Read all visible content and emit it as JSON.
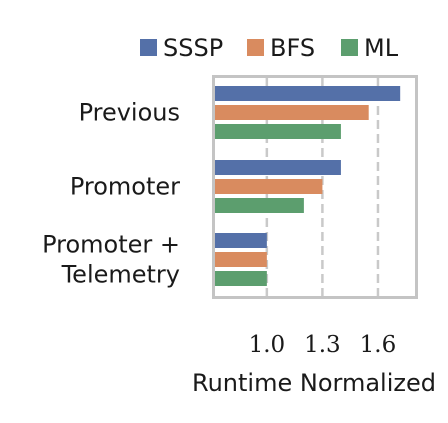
{
  "chart_data": {
    "type": "bar",
    "orientation": "horizontal",
    "categories": [
      [
        "Previous"
      ],
      [
        "Promoter"
      ],
      [
        "Promoter +",
        "Telemetry"
      ]
    ],
    "series": [
      {
        "name": "SSSP",
        "color": "#5470a8",
        "values": [
          1.72,
          1.4,
          1.0
        ]
      },
      {
        "name": "BFS",
        "color": "#d98b5f",
        "values": [
          1.55,
          1.3,
          1.0
        ]
      },
      {
        "name": "ML",
        "color": "#5c9e6e",
        "values": [
          1.4,
          1.2,
          1.0
        ]
      }
    ],
    "xlabel": "Runtime Normalized",
    "xticks": [
      "1.0",
      "1.3",
      "1.6"
    ],
    "xtick_values": [
      1.0,
      1.3,
      1.6
    ],
    "xlim": [
      0.72,
      1.8
    ],
    "grid": "vertical dashed",
    "legend": "top"
  }
}
